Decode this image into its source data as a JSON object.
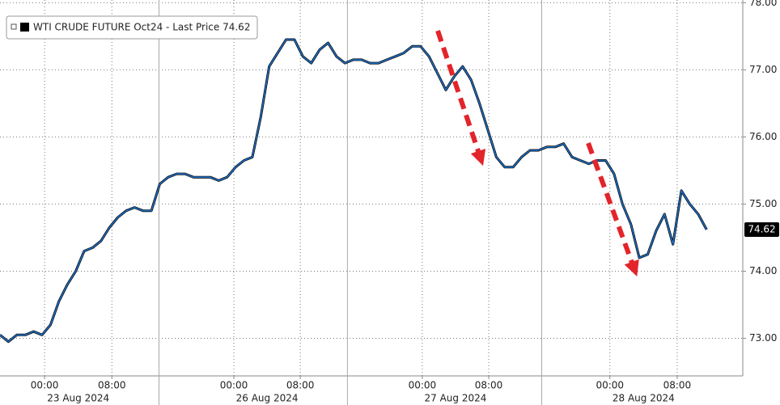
{
  "chart_data": {
    "type": "line",
    "series": [
      {
        "name": "WTI CRUDE FUTURE Oct24 - Last Price 74.62",
        "color": "#1f6fc4",
        "values": [
          73.05,
          72.95,
          73.05,
          73.05,
          73.1,
          73.05,
          73.2,
          73.55,
          73.8,
          74.0,
          74.3,
          74.35,
          74.45,
          74.65,
          74.8,
          74.9,
          74.95,
          74.9,
          74.9,
          75.3,
          75.4,
          75.45,
          75.45,
          75.4,
          75.4,
          75.4,
          75.35,
          75.4,
          75.55,
          75.65,
          75.7,
          76.3,
          77.05,
          77.25,
          77.45,
          77.45,
          77.2,
          77.1,
          77.3,
          77.4,
          77.2,
          77.1,
          77.15,
          77.15,
          77.1,
          77.1,
          77.15,
          77.2,
          77.25,
          77.35,
          77.35,
          77.2,
          76.95,
          76.7,
          76.9,
          77.05,
          76.85,
          76.5,
          76.1,
          75.7,
          75.55,
          75.55,
          75.7,
          75.8,
          75.8,
          75.85,
          75.85,
          75.9,
          75.7,
          75.65,
          75.6,
          75.65,
          75.65,
          75.45,
          75.0,
          74.7,
          74.2,
          74.25,
          74.6,
          74.85,
          74.4,
          75.2,
          75.0,
          74.85,
          74.62
        ]
      }
    ],
    "x": [
      0,
      1,
      2,
      3,
      4,
      5,
      6,
      7,
      8,
      9,
      10,
      11,
      12,
      13,
      14,
      15,
      16,
      17,
      18,
      19,
      20,
      21,
      22,
      23,
      24,
      25,
      26,
      27,
      28,
      29,
      30,
      31,
      32,
      33,
      34,
      35,
      36,
      37,
      38,
      39,
      40,
      41,
      42,
      43,
      44,
      45,
      46,
      47,
      48,
      49,
      50,
      51,
      52,
      53,
      54,
      55,
      56,
      57,
      58,
      59,
      60,
      61,
      62,
      63,
      64,
      65,
      66,
      67,
      68,
      69,
      70,
      71,
      72,
      73,
      74,
      75,
      76,
      77,
      78,
      79,
      80,
      81,
      82,
      83,
      84
    ],
    "xlim": [
      0,
      88.3
    ],
    "xticks": [
      {
        "value": 5.3,
        "label": "00:00"
      },
      {
        "value": 13.3,
        "label": "08:00"
      },
      {
        "value": 27.8,
        "label": "00:00"
      },
      {
        "value": 35.7,
        "label": "08:00"
      },
      {
        "value": 50.2,
        "label": "00:00"
      },
      {
        "value": 58.1,
        "label": "08:00"
      },
      {
        "value": 72.5,
        "label": "00:00"
      },
      {
        "value": 80.5,
        "label": "08:00"
      }
    ],
    "date_labels": [
      "23 Aug 2024",
      "26 Aug 2024",
      "27 Aug 2024",
      "28 Aug 2024"
    ],
    "session_breaks": [
      18.9,
      41.3,
      64.4
    ],
    "ylim": [
      72.44,
      78.04
    ],
    "yticks": [
      {
        "value": 73,
        "label": "73.00"
      },
      {
        "value": 74,
        "label": "74.00"
      },
      {
        "value": 75,
        "label": "75.00"
      },
      {
        "value": 76,
        "label": "76.00"
      },
      {
        "value": 77,
        "label": "77.00"
      },
      {
        "value": 78,
        "label": "78.00"
      }
    ],
    "last_price": 74.62,
    "grid": true
  }
}
